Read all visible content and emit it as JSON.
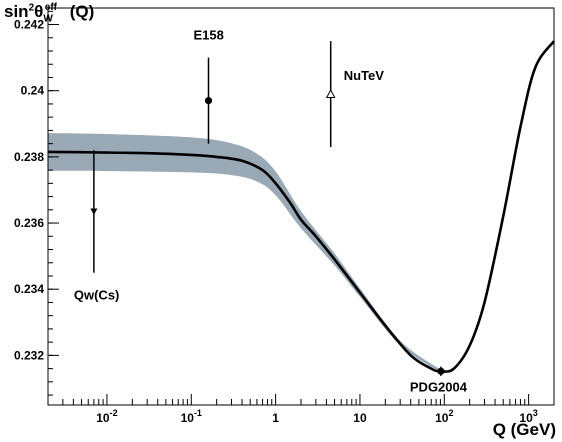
{
  "chart_data": {
    "type": "line",
    "ylabel_parts": {
      "base": "sin",
      "pow": "2",
      "theta": "θ",
      "sub": "W",
      "sup": "eff",
      "arg": " (Q)"
    },
    "xlabel": "Q (GeV)",
    "xscale": "log",
    "xlim": [
      0.002,
      2000
    ],
    "ylim": [
      0.2305,
      0.2425
    ],
    "y_ticks": [
      0.232,
      0.234,
      0.236,
      0.238,
      0.24,
      0.242
    ],
    "y_tick_labels": [
      "0.232",
      "0.234",
      "0.236",
      "0.238",
      "0.24",
      "0.242"
    ],
    "x_ticks": [
      0.01,
      0.1,
      1,
      10,
      100,
      1000
    ],
    "x_tick_labels": [
      {
        "base": "10",
        "exp": "-2"
      },
      {
        "base": "10",
        "exp": "-1"
      },
      {
        "base": "1",
        "exp": ""
      },
      {
        "base": "10",
        "exp": ""
      },
      {
        "base": "10",
        "exp": "2"
      },
      {
        "base": "10",
        "exp": "3"
      }
    ],
    "series": [
      {
        "type": "line",
        "color": "#000000",
        "x": [
          0.002,
          0.005,
          0.01,
          0.03,
          0.1,
          0.2,
          0.4,
          0.7,
          1.0,
          1.5,
          2.0,
          3.0,
          5.0,
          10,
          20,
          40,
          70,
          91.19,
          130,
          200,
          300,
          500,
          800,
          1200,
          2000
        ],
        "y": [
          0.23815,
          0.23814,
          0.23813,
          0.23811,
          0.23806,
          0.238,
          0.23788,
          0.2376,
          0.2372,
          0.2366,
          0.2361,
          0.2356,
          0.2349,
          0.2339,
          0.2329,
          0.232,
          0.2316,
          0.23152,
          0.2316,
          0.2323,
          0.2336,
          0.2362,
          0.2389,
          0.2407,
          0.2415
        ]
      }
    ],
    "band": {
      "color": "#9aa9b6",
      "x": [
        0.002,
        0.01,
        0.1,
        0.3,
        0.6,
        1.0,
        2.0,
        5.0,
        10,
        30,
        91.19
      ],
      "half_width": [
        0.00057,
        0.00056,
        0.00053,
        0.00048,
        0.00042,
        0.00036,
        0.00026,
        0.00018,
        0.00013,
        7e-05,
        4e-05
      ]
    },
    "points": [
      {
        "label": "Qw(Cs)",
        "x": 0.007,
        "y": 0.23635,
        "yerr_low": 0.00185,
        "yerr_high": 0.00185,
        "marker": "triangle-down"
      },
      {
        "label": "E158",
        "x": 0.16,
        "y": 0.2397,
        "yerr_low": 0.0013,
        "yerr_high": 0.0013,
        "marker": "circle"
      },
      {
        "label": "NuTeV",
        "x": 4.5,
        "y": 0.2399,
        "yerr_low": 0.0016,
        "yerr_high": 0.0016,
        "marker": "triangle-up-open"
      },
      {
        "label": "PDG2004",
        "x": 91.19,
        "y": 0.23152,
        "yerr_low": 0.00014,
        "yerr_high": 0.00014,
        "marker": "circle"
      }
    ]
  }
}
